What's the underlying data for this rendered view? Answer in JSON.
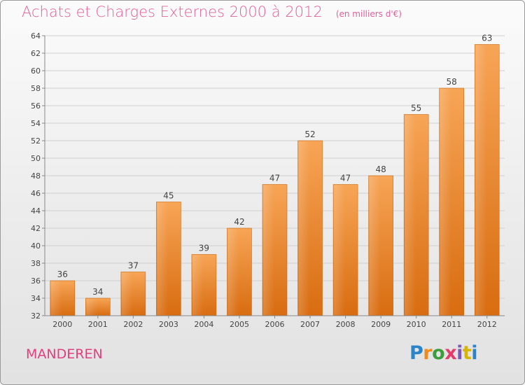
{
  "header": {
    "title": "Achats et Charges Externes 2000 à 2012",
    "unit": "(en milliers d'€)"
  },
  "footer": {
    "commune": "MANDEREN",
    "logo_text": "Proxiti"
  },
  "colors": {
    "title": "#e0609a",
    "bar_light": "#f7a556",
    "bar_dark": "#d86c10",
    "grid": "#d0d0d0",
    "axis": "#888888",
    "logo": [
      "#2b84c9",
      "#f08c1e",
      "#3b9d3b",
      "#e43b6b",
      "#7d59b6",
      "#d6b400",
      "#2b84c9"
    ]
  },
  "chart_data": {
    "type": "bar",
    "title": "Achats et Charges Externes 2000 à 2012",
    "categories": [
      "2000",
      "2001",
      "2002",
      "2003",
      "2004",
      "2005",
      "2006",
      "2007",
      "2008",
      "2009",
      "2010",
      "2011",
      "2012"
    ],
    "values": [
      36,
      34,
      37,
      45,
      39,
      42,
      47,
      52,
      47,
      48,
      55,
      58,
      63
    ],
    "ylim": [
      32,
      64
    ],
    "yticks": [
      32,
      34,
      36,
      38,
      40,
      42,
      44,
      46,
      48,
      50,
      52,
      54,
      56,
      58,
      60,
      62,
      64
    ],
    "grid": true,
    "xlabel": "",
    "ylabel": ""
  }
}
